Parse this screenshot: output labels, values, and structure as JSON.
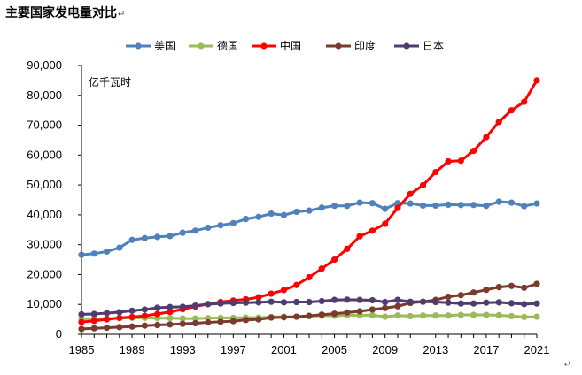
{
  "page": {
    "title": "主要国家发电量对比",
    "return_mark": "↵"
  },
  "chart_data": {
    "type": "line",
    "title": "主要国家发电量对比",
    "unit_label": "亿千瓦时",
    "xlabel": "",
    "ylabel": "亿千瓦时",
    "ylim": [
      0,
      90000
    ],
    "yticks": [
      "0",
      "10,000",
      "20,000",
      "30,000",
      "40,000",
      "50,000",
      "60,000",
      "70,000",
      "80,000",
      "90,000"
    ],
    "xlim": [
      1985,
      2021
    ],
    "xticks": [
      "1985",
      "1989",
      "1993",
      "1997",
      "2001",
      "2005",
      "2009",
      "2013",
      "2017",
      "2021"
    ],
    "legend_position": "top",
    "grid": false,
    "x": [
      1985,
      1986,
      1987,
      1988,
      1989,
      1990,
      1991,
      1992,
      1993,
      1994,
      1995,
      1996,
      1997,
      1998,
      1999,
      2000,
      2001,
      2002,
      2003,
      2004,
      2005,
      2006,
      2007,
      2008,
      2009,
      2010,
      2011,
      2012,
      2013,
      2014,
      2015,
      2016,
      2017,
      2018,
      2019,
      2020,
      2021
    ],
    "series": [
      {
        "name": "美国",
        "color": "#4F81BD",
        "values": [
          26600,
          27000,
          27700,
          29000,
          31600,
          32200,
          32600,
          32900,
          34000,
          34700,
          35700,
          36500,
          37200,
          38600,
          39300,
          40400,
          39900,
          41000,
          41400,
          42400,
          43000,
          43000,
          44100,
          43900,
          42000,
          43900,
          43800,
          43100,
          43100,
          43400,
          43300,
          43300,
          43000,
          44400,
          44100,
          42900,
          43800
        ]
      },
      {
        "name": "德国",
        "color": "#9BBB59",
        "values": [
          5200,
          5200,
          5300,
          5400,
          5500,
          5500,
          5400,
          5400,
          5300,
          5300,
          5400,
          5500,
          5500,
          5600,
          5600,
          5800,
          5900,
          5900,
          6100,
          6200,
          6200,
          6400,
          6400,
          6400,
          5900,
          6300,
          6100,
          6300,
          6300,
          6300,
          6500,
          6500,
          6500,
          6400,
          6100,
          5800,
          5900
        ]
      },
      {
        "name": "中国",
        "color": "#FF0000",
        "values": [
          4100,
          4500,
          5000,
          5500,
          5800,
          6200,
          6800,
          7500,
          8400,
          9300,
          10100,
          10800,
          11300,
          11700,
          12400,
          13600,
          14800,
          16500,
          19100,
          22000,
          25000,
          28600,
          32800,
          34700,
          37000,
          42300,
          47000,
          49900,
          54300,
          57900,
          58100,
          61400,
          66000,
          71100,
          75000,
          77800,
          85000
        ]
      },
      {
        "name": "印度",
        "color": "#7B3A2E",
        "values": [
          1800,
          2000,
          2200,
          2400,
          2600,
          2900,
          3100,
          3300,
          3500,
          3700,
          4000,
          4200,
          4400,
          4800,
          5000,
          5600,
          5700,
          5900,
          6200,
          6600,
          6900,
          7300,
          7700,
          8300,
          8800,
          9400,
          10500,
          10900,
          11500,
          12600,
          13100,
          14000,
          14900,
          15800,
          16200,
          15600,
          16900
        ]
      },
      {
        "name": "日本",
        "color": "#4E3D6E",
        "values": [
          6700,
          6800,
          7100,
          7400,
          7900,
          8300,
          8900,
          9100,
          9200,
          9600,
          10100,
          10300,
          10500,
          10600,
          10700,
          10900,
          10700,
          10800,
          10800,
          11100,
          11500,
          11600,
          11500,
          11400,
          10800,
          11500,
          10900,
          10900,
          10800,
          10600,
          10300,
          10300,
          10600,
          10700,
          10400,
          10100,
          10300
        ]
      }
    ]
  }
}
